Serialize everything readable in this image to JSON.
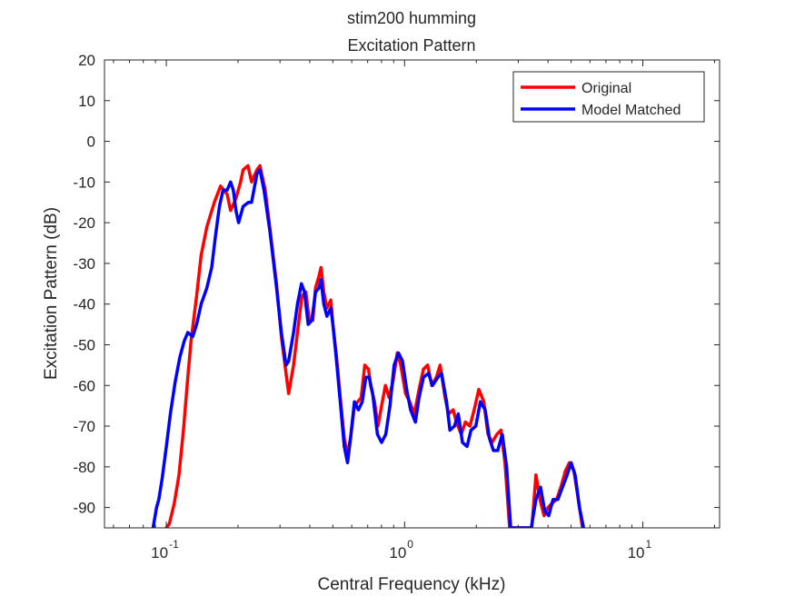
{
  "chart_data": {
    "type": "line",
    "title": "stim200 humming",
    "subtitle": "Excitation Pattern",
    "xlabel": "Central Frequency (kHz)",
    "ylabel": "Excitation Pattern (dB)",
    "x_scale": "log",
    "xlim": [
      0.055,
      21
    ],
    "ylim": [
      -95,
      20
    ],
    "x_ticks": [
      {
        "value": 0.1,
        "base": "10",
        "exp": "-1"
      },
      {
        "value": 1,
        "base": "10",
        "exp": "0"
      },
      {
        "value": 10,
        "base": "10",
        "exp": "1"
      }
    ],
    "y_ticks": [
      "20",
      "10",
      "0",
      "-10",
      "-20",
      "-30",
      "-40",
      "-50",
      "-60",
      "-70",
      "-80",
      "-90"
    ],
    "legend": {
      "placement": "top-right",
      "entries": [
        "Original",
        "Model Matched"
      ]
    },
    "grid": false,
    "colors": {
      "Original": "#ff0000",
      "Model Matched": "#0000ff"
    },
    "series": [
      {
        "name": "Original",
        "points": [
          [
            0.1,
            -95
          ],
          [
            0.103,
            -94
          ],
          [
            0.108,
            -89
          ],
          [
            0.113,
            -82
          ],
          [
            0.118,
            -71
          ],
          [
            0.123,
            -58
          ],
          [
            0.127,
            -49
          ],
          [
            0.134,
            -38
          ],
          [
            0.14,
            -28
          ],
          [
            0.148,
            -21
          ],
          [
            0.159,
            -15
          ],
          [
            0.169,
            -11
          ],
          [
            0.18,
            -13
          ],
          [
            0.186,
            -17
          ],
          [
            0.196,
            -14
          ],
          [
            0.205,
            -10
          ],
          [
            0.21,
            -7
          ],
          [
            0.22,
            -6
          ],
          [
            0.228,
            -10
          ],
          [
            0.24,
            -7
          ],
          [
            0.247,
            -6
          ],
          [
            0.26,
            -12
          ],
          [
            0.273,
            -22
          ],
          [
            0.29,
            -35
          ],
          [
            0.304,
            -48
          ],
          [
            0.318,
            -57
          ],
          [
            0.326,
            -62
          ],
          [
            0.342,
            -55
          ],
          [
            0.355,
            -47
          ],
          [
            0.371,
            -38
          ],
          [
            0.385,
            -37
          ],
          [
            0.398,
            -44
          ],
          [
            0.412,
            -44
          ],
          [
            0.423,
            -36
          ],
          [
            0.438,
            -33
          ],
          [
            0.446,
            -31
          ],
          [
            0.458,
            -37
          ],
          [
            0.472,
            -41
          ],
          [
            0.49,
            -39
          ],
          [
            0.5,
            -45
          ],
          [
            0.518,
            -53
          ],
          [
            0.537,
            -63
          ],
          [
            0.558,
            -73
          ],
          [
            0.576,
            -77
          ],
          [
            0.593,
            -73
          ],
          [
            0.616,
            -65
          ],
          [
            0.636,
            -64
          ],
          [
            0.657,
            -63
          ],
          [
            0.681,
            -55
          ],
          [
            0.706,
            -56
          ],
          [
            0.72,
            -60
          ],
          [
            0.748,
            -64
          ],
          [
            0.773,
            -70
          ],
          [
            0.801,
            -65
          ],
          [
            0.831,
            -60
          ],
          [
            0.861,
            -63
          ],
          [
            0.894,
            -59
          ],
          [
            0.932,
            -52
          ],
          [
            0.964,
            -55
          ],
          [
            1.01,
            -62
          ],
          [
            1.05,
            -64
          ],
          [
            1.1,
            -67
          ],
          [
            1.15,
            -61
          ],
          [
            1.2,
            -56
          ],
          [
            1.25,
            -55
          ],
          [
            1.3,
            -60
          ],
          [
            1.36,
            -58
          ],
          [
            1.41,
            -55
          ],
          [
            1.48,
            -63
          ],
          [
            1.53,
            -67
          ],
          [
            1.6,
            -66
          ],
          [
            1.65,
            -69
          ],
          [
            1.73,
            -72
          ],
          [
            1.8,
            -69
          ],
          [
            1.88,
            -70
          ],
          [
            1.96,
            -66
          ],
          [
            2.05,
            -61
          ],
          [
            2.15,
            -64
          ],
          [
            2.24,
            -72
          ],
          [
            2.33,
            -74
          ],
          [
            2.44,
            -72
          ],
          [
            2.54,
            -71
          ],
          [
            2.64,
            -79
          ],
          [
            2.76,
            -95
          ],
          [
            3.42,
            -95
          ],
          [
            3.56,
            -82
          ],
          [
            3.7,
            -88
          ],
          [
            3.85,
            -92
          ],
          [
            4.0,
            -90
          ],
          [
            4.15,
            -89
          ],
          [
            4.35,
            -88
          ],
          [
            4.53,
            -85
          ],
          [
            4.73,
            -81
          ],
          [
            4.92,
            -79
          ],
          [
            5.14,
            -81
          ],
          [
            5.36,
            -88
          ],
          [
            5.58,
            -95
          ]
        ]
      },
      {
        "name": "Model Matched",
        "points": [
          [
            0.088,
            -95
          ],
          [
            0.091,
            -90
          ],
          [
            0.093,
            -88
          ],
          [
            0.096,
            -83
          ],
          [
            0.1,
            -75
          ],
          [
            0.104,
            -67
          ],
          [
            0.109,
            -59
          ],
          [
            0.114,
            -53
          ],
          [
            0.119,
            -49
          ],
          [
            0.123,
            -47
          ],
          [
            0.129,
            -48
          ],
          [
            0.134,
            -45
          ],
          [
            0.14,
            -40
          ],
          [
            0.148,
            -36
          ],
          [
            0.155,
            -31
          ],
          [
            0.161,
            -23
          ],
          [
            0.167,
            -16
          ],
          [
            0.173,
            -12
          ],
          [
            0.18,
            -12
          ],
          [
            0.186,
            -10
          ],
          [
            0.191,
            -12
          ],
          [
            0.196,
            -17
          ],
          [
            0.201,
            -20
          ],
          [
            0.21,
            -16
          ],
          [
            0.221,
            -15
          ],
          [
            0.228,
            -15
          ],
          [
            0.24,
            -8
          ],
          [
            0.247,
            -7
          ],
          [
            0.257,
            -12
          ],
          [
            0.272,
            -22
          ],
          [
            0.289,
            -35
          ],
          [
            0.304,
            -47
          ],
          [
            0.318,
            -55
          ],
          [
            0.326,
            -54
          ],
          [
            0.342,
            -47
          ],
          [
            0.355,
            -40
          ],
          [
            0.369,
            -35
          ],
          [
            0.38,
            -37
          ],
          [
            0.394,
            -45
          ],
          [
            0.408,
            -44
          ],
          [
            0.423,
            -37
          ],
          [
            0.438,
            -36
          ],
          [
            0.446,
            -34
          ],
          [
            0.458,
            -40
          ],
          [
            0.472,
            -43
          ],
          [
            0.49,
            -41
          ],
          [
            0.5,
            -45
          ],
          [
            0.518,
            -54
          ],
          [
            0.537,
            -64
          ],
          [
            0.558,
            -75
          ],
          [
            0.576,
            -79
          ],
          [
            0.593,
            -73
          ],
          [
            0.616,
            -64
          ],
          [
            0.64,
            -66
          ],
          [
            0.664,
            -64
          ],
          [
            0.688,
            -58
          ],
          [
            0.71,
            -58
          ],
          [
            0.735,
            -62
          ],
          [
            0.769,
            -72
          ],
          [
            0.801,
            -74
          ],
          [
            0.834,
            -72
          ],
          [
            0.868,
            -65
          ],
          [
            0.904,
            -55
          ],
          [
            0.942,
            -52
          ],
          [
            0.98,
            -54
          ],
          [
            1.02,
            -61
          ],
          [
            1.06,
            -66
          ],
          [
            1.11,
            -69
          ],
          [
            1.15,
            -63
          ],
          [
            1.2,
            -58
          ],
          [
            1.26,
            -57
          ],
          [
            1.31,
            -60
          ],
          [
            1.38,
            -58
          ],
          [
            1.43,
            -57
          ],
          [
            1.5,
            -64
          ],
          [
            1.55,
            -71
          ],
          [
            1.62,
            -70
          ],
          [
            1.68,
            -67
          ],
          [
            1.75,
            -74
          ],
          [
            1.83,
            -75
          ],
          [
            1.9,
            -71
          ],
          [
            1.99,
            -70
          ],
          [
            2.08,
            -64
          ],
          [
            2.18,
            -66
          ],
          [
            2.27,
            -73
          ],
          [
            2.36,
            -76
          ],
          [
            2.46,
            -76
          ],
          [
            2.57,
            -72
          ],
          [
            2.68,
            -80
          ],
          [
            2.79,
            -95
          ],
          [
            3.4,
            -95
          ],
          [
            3.56,
            -88
          ],
          [
            3.72,
            -85
          ],
          [
            3.88,
            -91
          ],
          [
            4.03,
            -92
          ],
          [
            4.2,
            -88
          ],
          [
            4.4,
            -88
          ],
          [
            4.6,
            -85
          ],
          [
            4.81,
            -82
          ],
          [
            5.0,
            -79
          ],
          [
            5.2,
            -82
          ],
          [
            5.42,
            -90
          ],
          [
            5.64,
            -95
          ]
        ]
      }
    ]
  }
}
